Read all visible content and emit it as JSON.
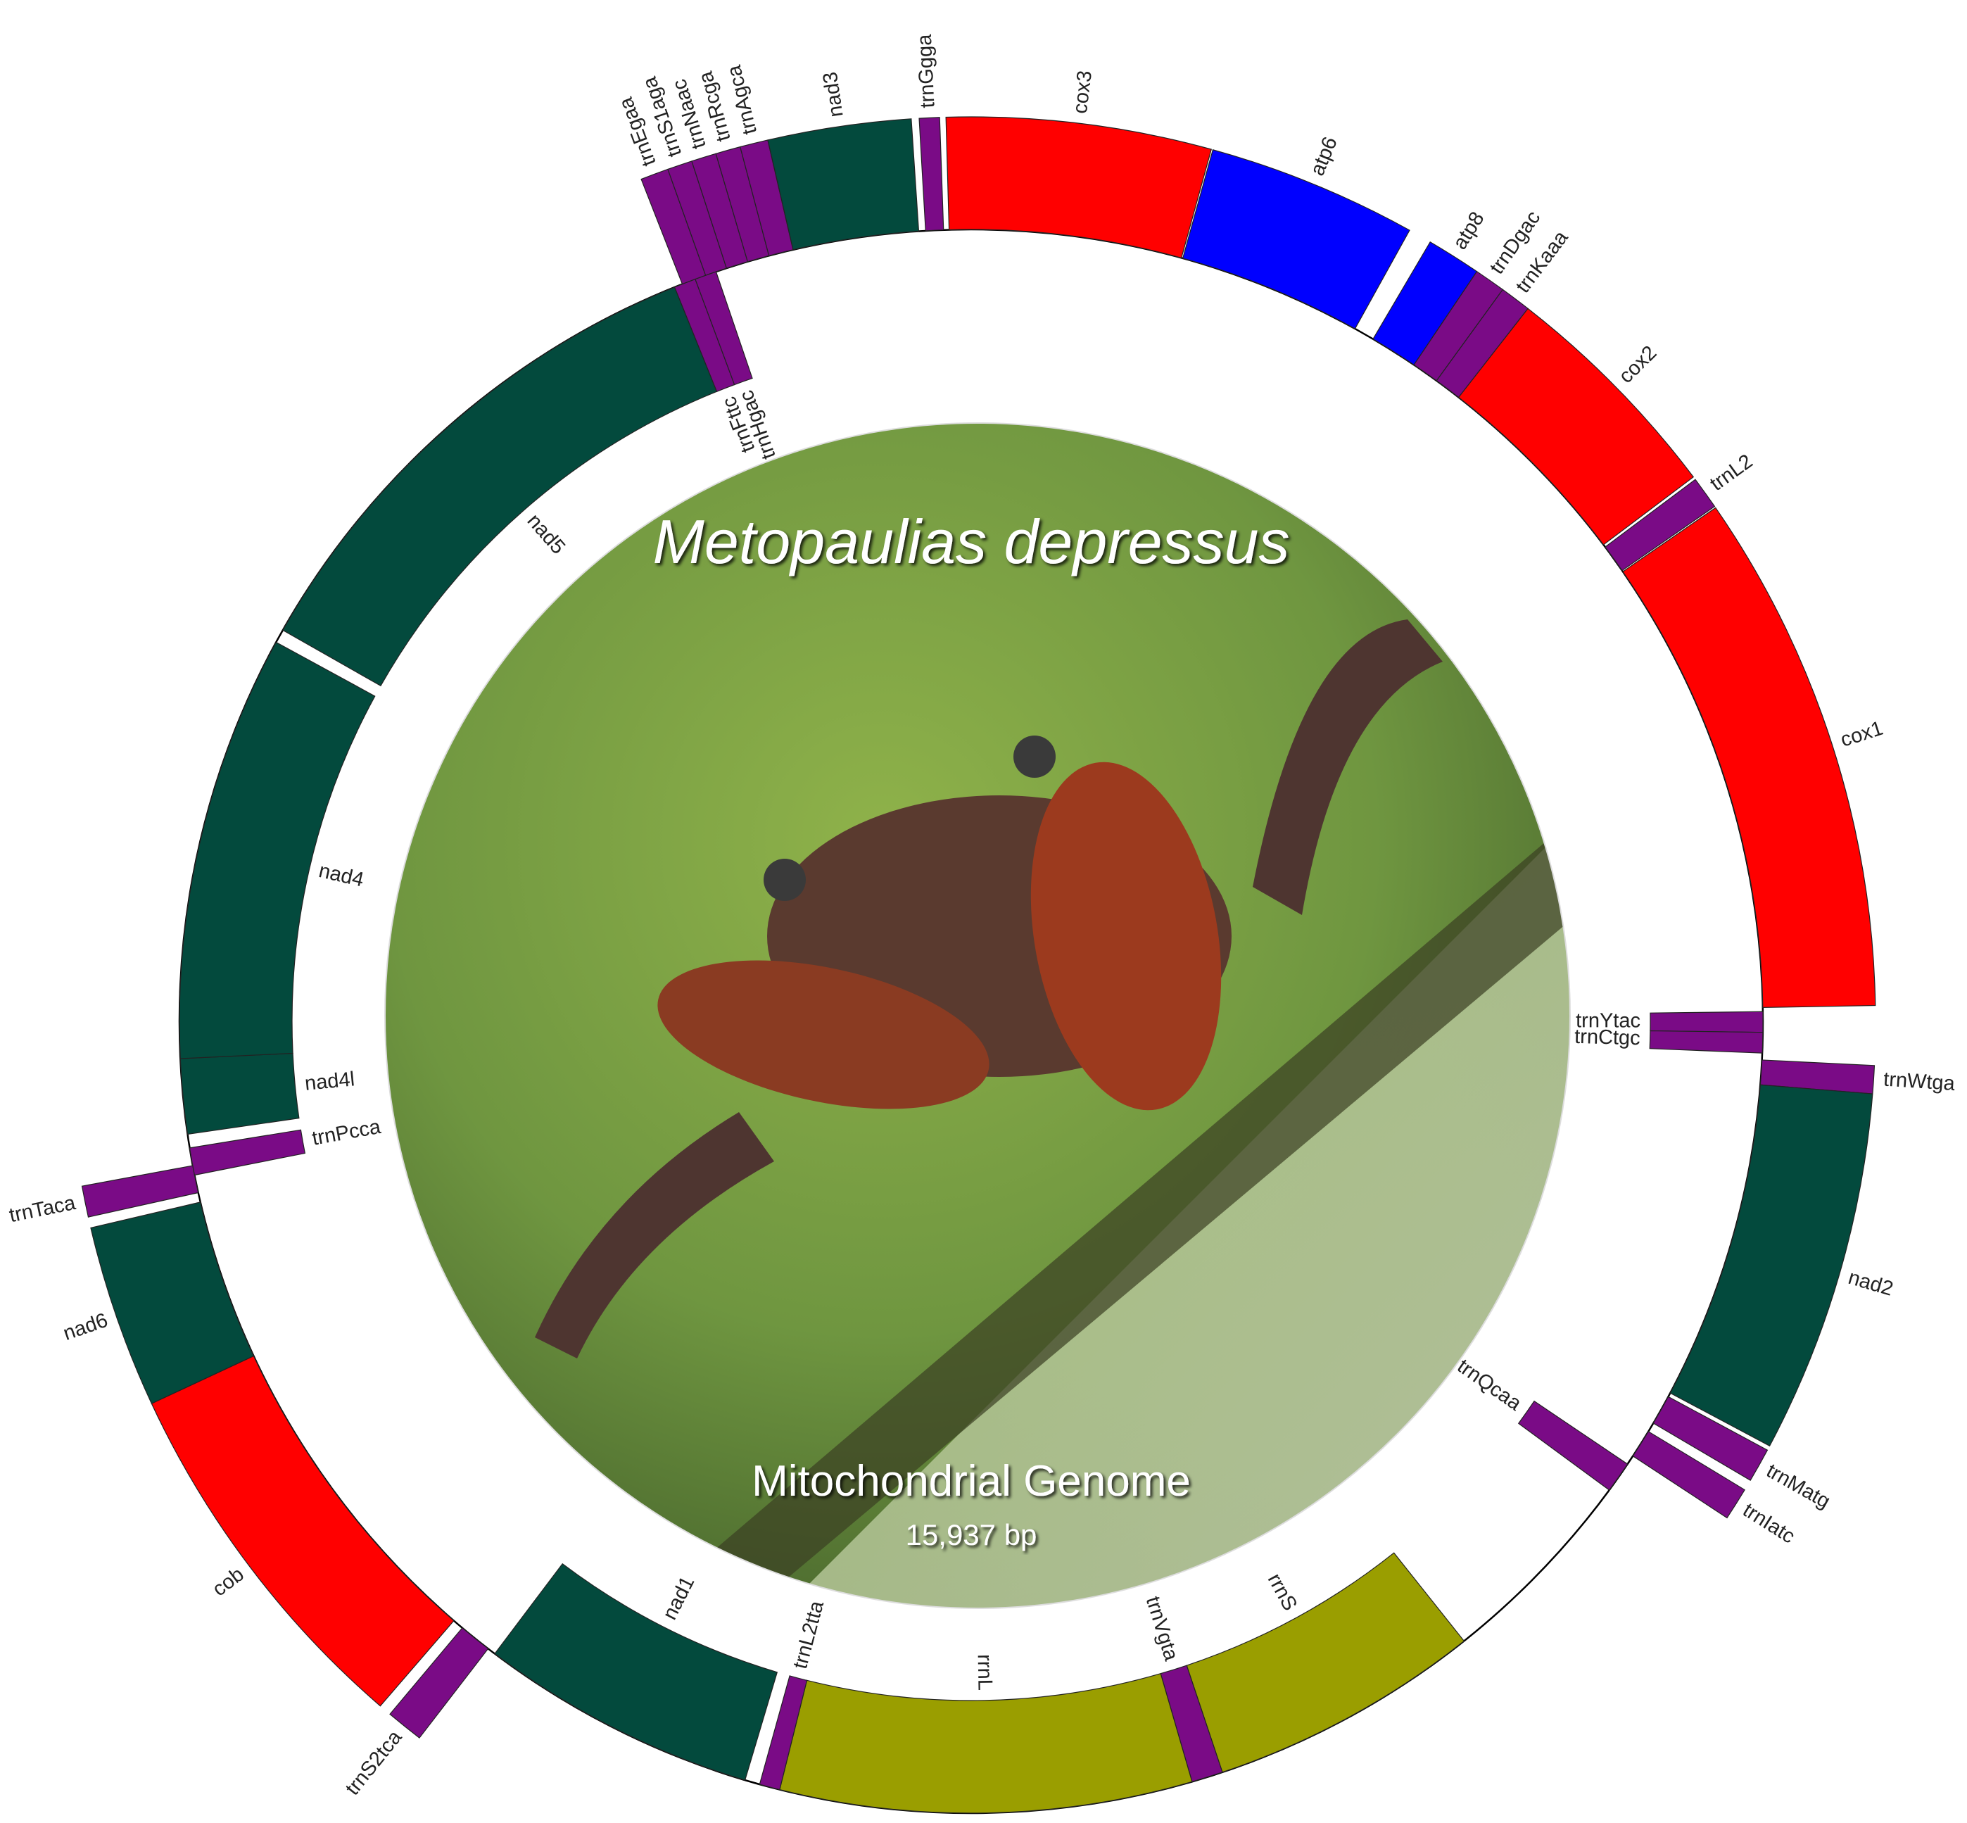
{
  "title": "Metopaulias depressus",
  "genome_label": "Mitochondrial Genome",
  "size_label": "15,937 bp",
  "genes": [
    {
      "label": "trnGgga"
    },
    {
      "label": "cox3"
    },
    {
      "label": "atp6"
    },
    {
      "label": "atp8"
    },
    {
      "label": "trnDgac"
    },
    {
      "label": "trnKaaa"
    },
    {
      "label": "cox2"
    },
    {
      "label": "trnL2"
    },
    {
      "label": "cox1"
    },
    {
      "label": "trnYtac"
    },
    {
      "label": "trnCtgc"
    },
    {
      "label": "trnWtga"
    },
    {
      "label": "nad2"
    },
    {
      "label": "trnMatg"
    },
    {
      "label": "trnIatc"
    },
    {
      "label": "trnQcaa"
    },
    {
      "label": "rrnS"
    },
    {
      "label": "trnVgta"
    },
    {
      "label": "rrnL"
    },
    {
      "label": "trnL2tta"
    },
    {
      "label": "nad1"
    },
    {
      "label": "trnS2tca"
    },
    {
      "label": "cob"
    },
    {
      "label": "nad6"
    },
    {
      "label": "trnTaca"
    },
    {
      "label": "trnPcca"
    },
    {
      "label": "nad4l"
    },
    {
      "label": "nad4"
    },
    {
      "label": "nad5"
    },
    {
      "label": "trnFttc"
    },
    {
      "label": "trnHgac"
    },
    {
      "label": "trnEgaa"
    },
    {
      "label": "trnS1aga"
    },
    {
      "label": "trnNaac"
    },
    {
      "label": "trnRcga"
    },
    {
      "label": "trnAgca"
    },
    {
      "label": "nad3"
    }
  ]
}
